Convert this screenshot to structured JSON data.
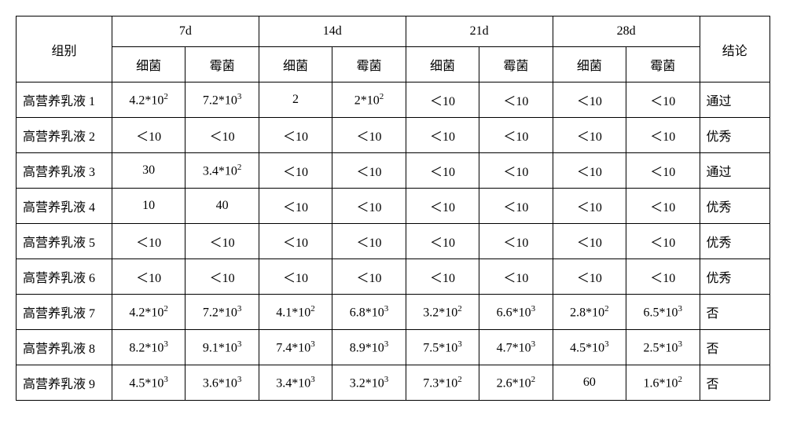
{
  "header": {
    "group": "组别",
    "periods": [
      "7d",
      "14d",
      "21d",
      "28d"
    ],
    "sub": [
      "细菌",
      "霉菌"
    ],
    "conclusion": "结论"
  },
  "rows": [
    {
      "label": "高营养乳液 1",
      "cells": [
        "4.2*10<sup>2</sup>",
        "7.2*10<sup>3</sup>",
        "2",
        "2*10<sup>2</sup>",
        "＜10",
        "＜10",
        "＜10",
        "＜10"
      ],
      "conc": "通过"
    },
    {
      "label": "高营养乳液 2",
      "cells": [
        "＜10",
        "＜10",
        "＜10",
        "＜10",
        "＜10",
        "＜10",
        "＜10",
        "＜10"
      ],
      "conc": "优秀"
    },
    {
      "label": "高营养乳液 3",
      "cells": [
        "30",
        "3.4*10<sup>2</sup>",
        "＜10",
        "＜10",
        "＜10",
        "＜10",
        "＜10",
        "＜10"
      ],
      "conc": "通过"
    },
    {
      "label": "高营养乳液 4",
      "cells": [
        "10",
        "40",
        "＜10",
        "＜10",
        "＜10",
        "＜10",
        "＜10",
        "＜10"
      ],
      "conc": "优秀"
    },
    {
      "label": "高营养乳液 5",
      "cells": [
        "＜10",
        "＜10",
        "＜10",
        "＜10",
        "＜10",
        "＜10",
        "＜10",
        "＜10"
      ],
      "conc": "优秀"
    },
    {
      "label": "高营养乳液 6",
      "cells": [
        "＜10",
        "＜10",
        "＜10",
        "＜10",
        "＜10",
        "＜10",
        "＜10",
        "＜10"
      ],
      "conc": "优秀"
    },
    {
      "label": "高营养乳液 7",
      "cells": [
        "4.2*10<sup>2</sup>",
        "7.2*10<sup>3</sup>",
        "4.1*10<sup>2</sup>",
        "6.8*10<sup>3</sup>",
        "3.2*10<sup>2</sup>",
        "6.6*10<sup>3</sup>",
        "2.8*10<sup>2</sup>",
        "6.5*10<sup>3</sup>"
      ],
      "conc": "否"
    },
    {
      "label": "高营养乳液 8",
      "cells": [
        "8.2*10<sup>3</sup>",
        "9.1*10<sup>3</sup>",
        "7.4*10<sup>3</sup>",
        "8.9*10<sup>3</sup>",
        "7.5*10<sup>3</sup>",
        "4.7*10<sup>3</sup>",
        "4.5*10<sup>3</sup>",
        "2.5*10<sup>3</sup>"
      ],
      "conc": "否"
    },
    {
      "label": "高营养乳液 9",
      "cells": [
        "4.5*10<sup>3</sup>",
        "3.6*10<sup>3</sup>",
        "3.4*10<sup>3</sup>",
        "3.2*10<sup>3</sup>",
        "7.3*10<sup>2</sup>",
        "2.6*10<sup>2</sup>",
        "60",
        "1.6*10<sup>2</sup>"
      ],
      "conc": "否"
    }
  ],
  "style": {
    "border_color": "#000000",
    "background": "#ffffff",
    "font_size_pt": 12
  }
}
